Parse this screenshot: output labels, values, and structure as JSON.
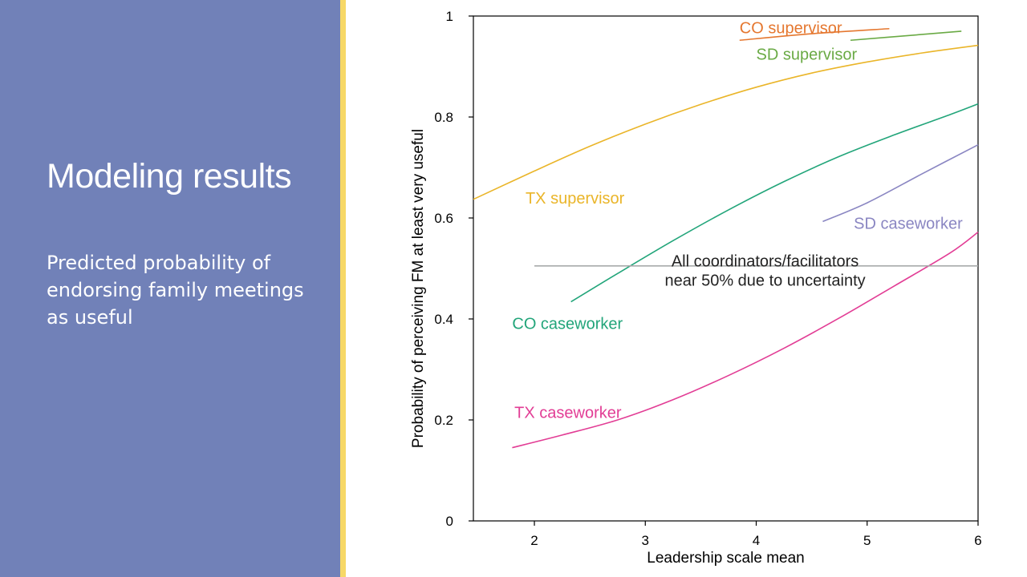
{
  "slide": {
    "title": "Modeling results",
    "subtitle": "Predicted probability of endorsing family meetings as useful"
  },
  "colors": {
    "sidebar": "#7181b8",
    "accent": "#f7d867"
  },
  "chart_data": {
    "type": "line",
    "title": "",
    "xlabel": "Leadership scale mean",
    "ylabel": "Probability of perceiving FM at least very useful",
    "xlim": [
      1.45,
      6
    ],
    "ylim": [
      0,
      1
    ],
    "x_ticks": [
      2,
      3,
      4,
      5,
      6
    ],
    "y_ticks": [
      {
        "value": 0,
        "label": "0"
      },
      {
        "value": 0.2,
        "label": "0.2"
      },
      {
        "value": 0.4,
        "label": "0.4"
      },
      {
        "value": 0.6,
        "label": "0.6"
      },
      {
        "value": 0.8,
        "label": "0.8"
      },
      {
        "value": 1,
        "label": "1"
      }
    ],
    "grid": false,
    "series": [
      {
        "name": "CO supervisor",
        "color": "#e5772f",
        "x": [
          3.85,
          4.5,
          5.2
        ],
        "y": [
          0.952,
          0.965,
          0.975
        ]
      },
      {
        "name": "SD supervisor",
        "color": "#6aaa45",
        "x": [
          4.85,
          5.3,
          5.85
        ],
        "y": [
          0.952,
          0.96,
          0.97
        ]
      },
      {
        "name": "TX supervisor",
        "color": "#eab529",
        "x": [
          1.45,
          2,
          2.5,
          3,
          3.5,
          4,
          4.5,
          5,
          5.5,
          6
        ],
        "y": [
          0.637,
          0.693,
          0.742,
          0.786,
          0.825,
          0.859,
          0.887,
          0.909,
          0.927,
          0.942
        ]
      },
      {
        "name": "CO caseworker",
        "color": "#22a57a",
        "x": [
          2.33,
          2.75,
          3.25,
          3.75,
          4.25,
          4.75,
          5.25,
          5.75,
          6
        ],
        "y": [
          0.434,
          0.49,
          0.555,
          0.616,
          0.672,
          0.722,
          0.765,
          0.805,
          0.826
        ]
      },
      {
        "name": "SD caseworker",
        "color": "#8a86c2",
        "x": [
          4.6,
          5,
          5.5,
          6
        ],
        "y": [
          0.593,
          0.63,
          0.688,
          0.745
        ]
      },
      {
        "name": "TX caseworker",
        "color": "#e23d95",
        "x": [
          1.8,
          2.25,
          2.75,
          3.25,
          3.75,
          4.25,
          4.75,
          5.25,
          5.75,
          6
        ],
        "y": [
          0.145,
          0.17,
          0.2,
          0.24,
          0.288,
          0.342,
          0.402,
          0.466,
          0.531,
          0.572
        ]
      },
      {
        "name": "All coordinators/facilitators",
        "color": "#a8aaaa",
        "x": [
          2,
          6
        ],
        "y": [
          0.505,
          0.505
        ]
      }
    ],
    "annotations": [
      {
        "text": "CO supervisor",
        "x": 3.85,
        "y": 0.977,
        "color": "#e5772f",
        "anchor": "start"
      },
      {
        "text": "SD supervisor",
        "x": 4.0,
        "y": 0.925,
        "color": "#6aaa45",
        "anchor": "start"
      },
      {
        "text": "TX supervisor",
        "x": 1.92,
        "y": 0.64,
        "color": "#eab529",
        "anchor": "start"
      },
      {
        "text": "SD caseworker",
        "x": 4.88,
        "y": 0.59,
        "color": "#8a86c2",
        "anchor": "start"
      },
      {
        "text": "All coordinators/facilitators",
        "x": 4.08,
        "y": 0.515,
        "color": "#222222",
        "anchor": "middle"
      },
      {
        "text": "near 50% due to uncertainty",
        "x": 4.08,
        "y": 0.477,
        "color": "#222222",
        "anchor": "middle"
      },
      {
        "text": "CO caseworker",
        "x": 1.8,
        "y": 0.391,
        "color": "#22a57a",
        "anchor": "start"
      },
      {
        "text": "TX caseworker",
        "x": 1.82,
        "y": 0.215,
        "color": "#e23d95",
        "anchor": "start"
      }
    ]
  }
}
